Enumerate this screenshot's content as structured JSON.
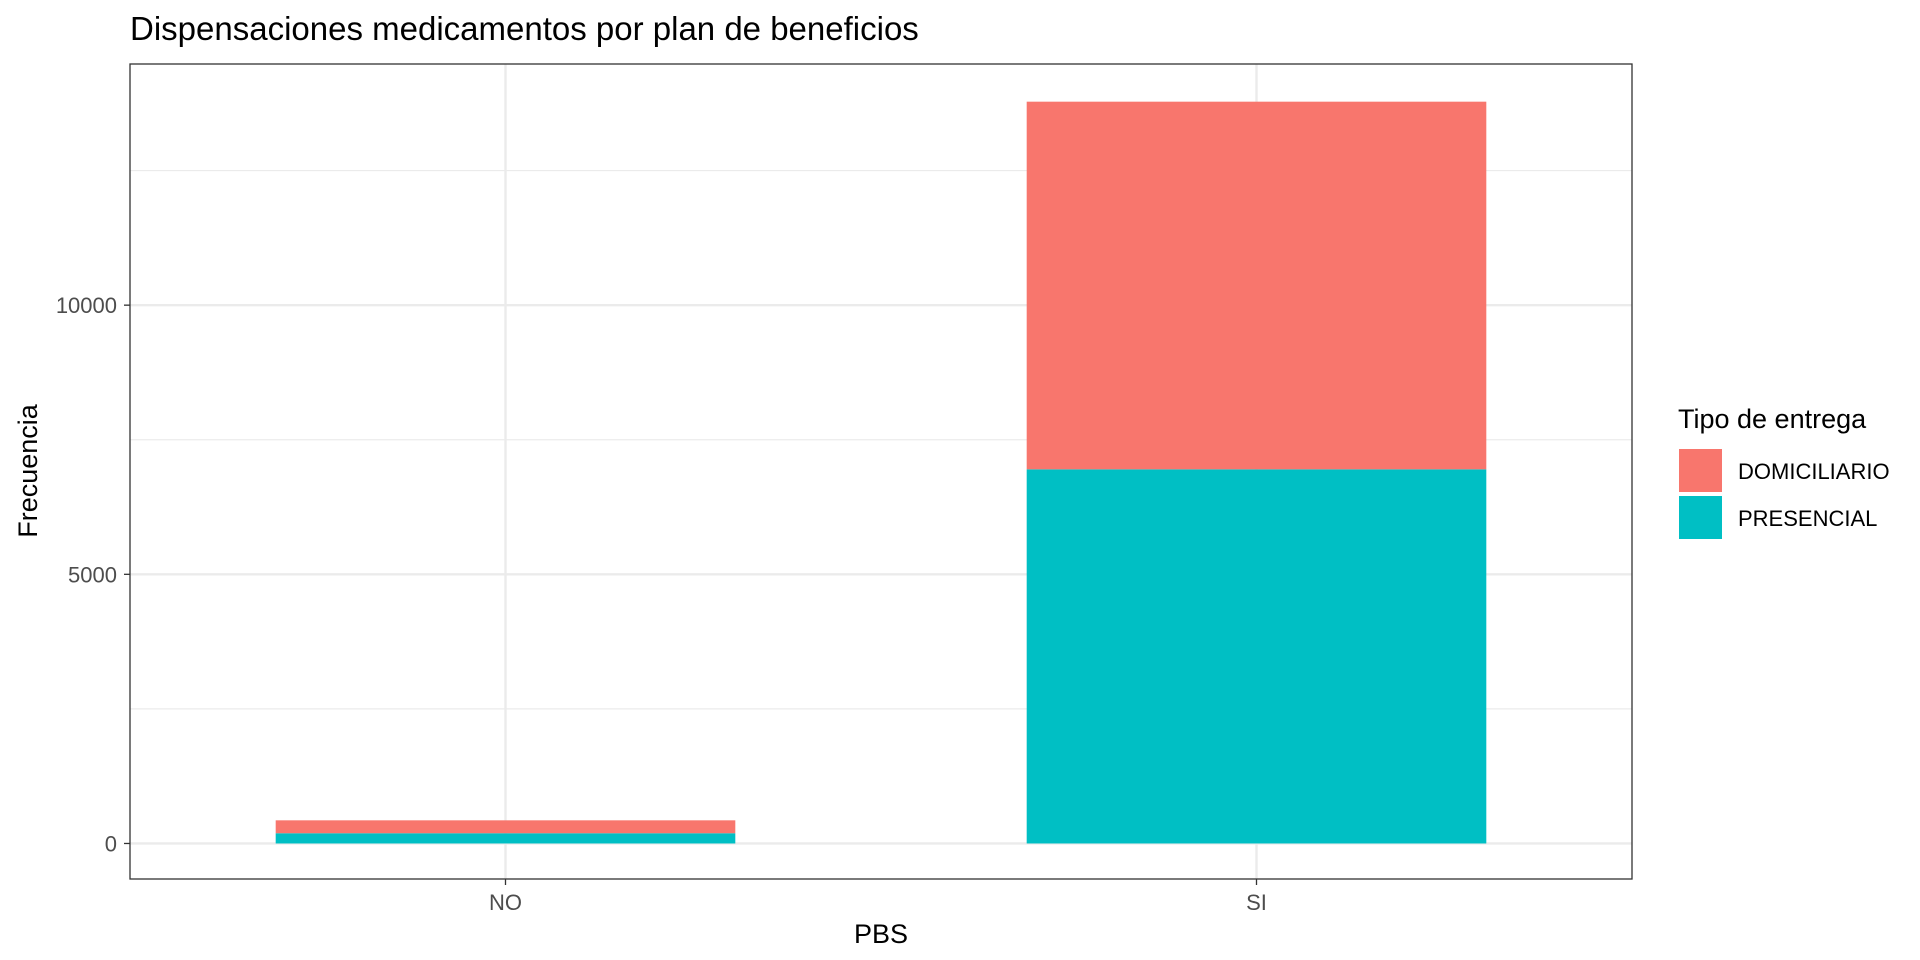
{
  "chart_data": {
    "type": "bar",
    "stacked": true,
    "title": "Dispensaciones medicamentos por plan de beneficios",
    "xlabel": "PBS",
    "ylabel": "Frecuencia",
    "categories": [
      "NO",
      "SI"
    ],
    "series": [
      {
        "name": "PRESENCIAL",
        "color": "#00BFC4",
        "values": [
          190,
          6950
        ]
      },
      {
        "name": "DOMICILIARIO",
        "color": "#F8766D",
        "values": [
          240,
          6830
        ]
      }
    ],
    "legend_title": "Tipo de entrega",
    "legend_order": [
      "DOMICILIARIO",
      "PRESENCIAL"
    ],
    "yticks": [
      0,
      5000,
      10000
    ],
    "ylim": [
      -660,
      14480
    ],
    "grid": true,
    "legend_position": "right"
  }
}
